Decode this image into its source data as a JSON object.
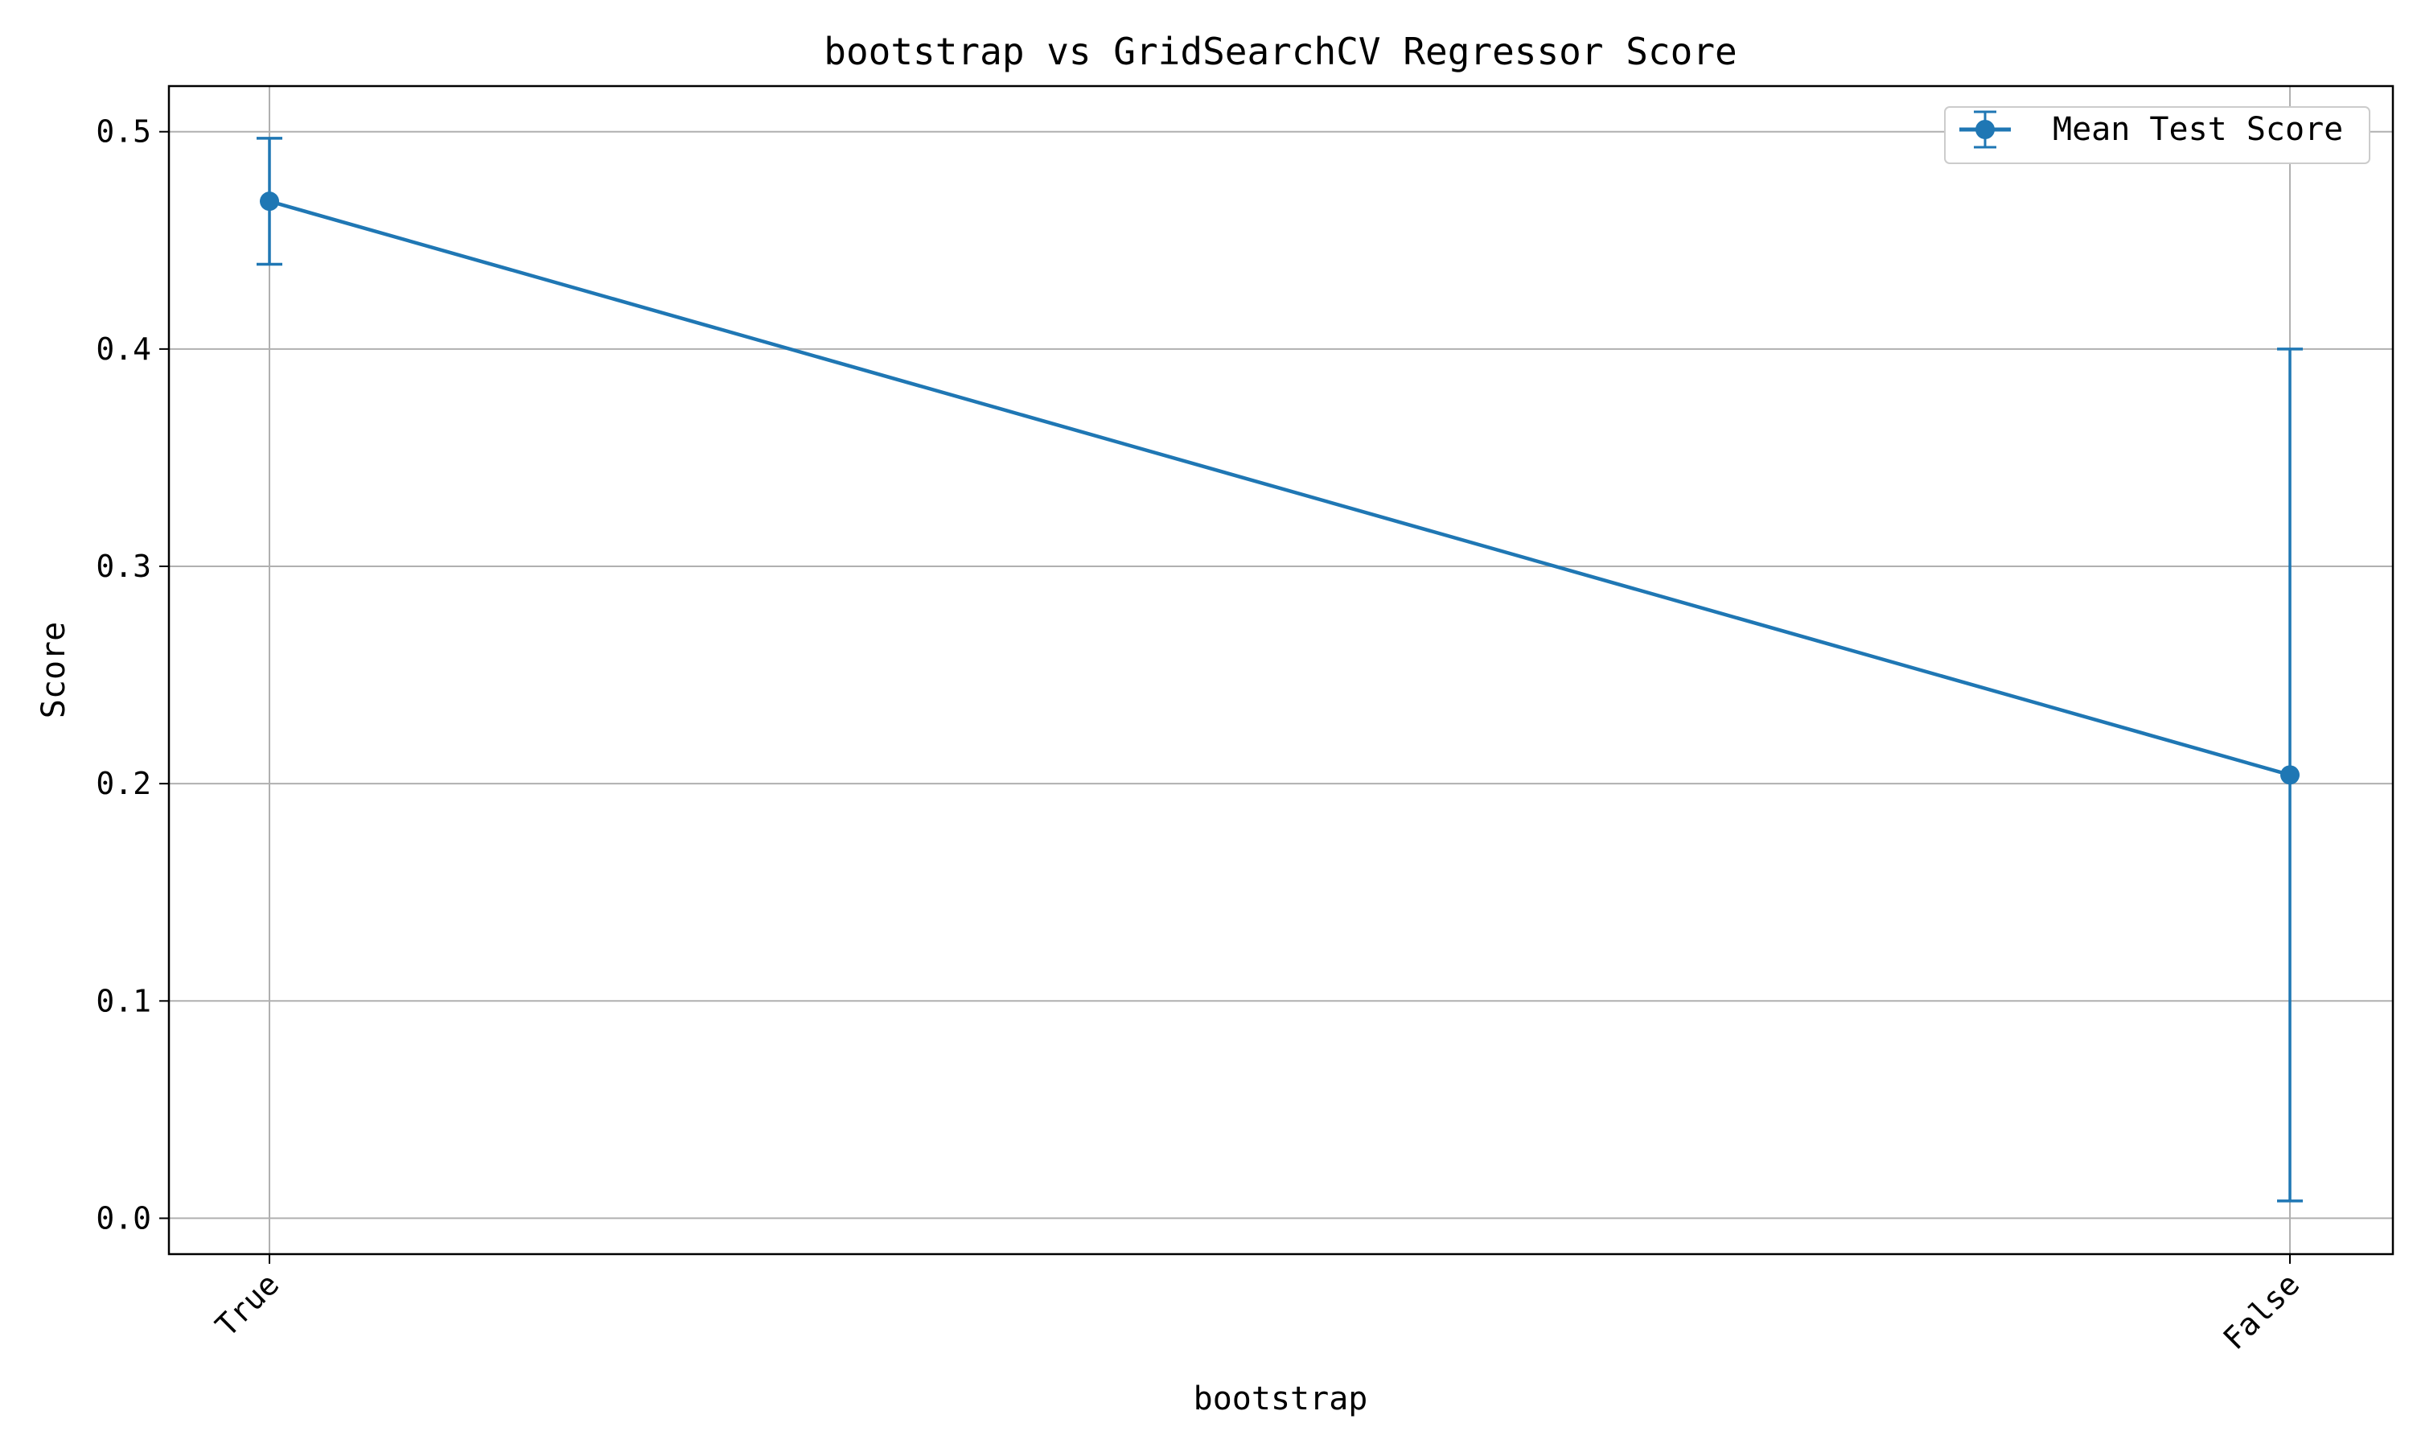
{
  "chart_data": {
    "type": "line",
    "title": "bootstrap vs GridSearchCV Regressor Score",
    "xlabel": "bootstrap",
    "ylabel": "Score",
    "categories": [
      "True",
      "False"
    ],
    "series": [
      {
        "name": "Mean Test Score",
        "values": [
          0.468,
          0.204
        ],
        "error_low": [
          0.439,
          0.008
        ],
        "error_high": [
          0.497,
          0.4
        ],
        "color": "#1f77b4"
      }
    ],
    "ylim": [
      -0.0165,
      0.521
    ],
    "yticks": [
      "0.0",
      "0.1",
      "0.2",
      "0.3",
      "0.4",
      "0.5"
    ],
    "grid": true,
    "legend_position": "top-right"
  }
}
